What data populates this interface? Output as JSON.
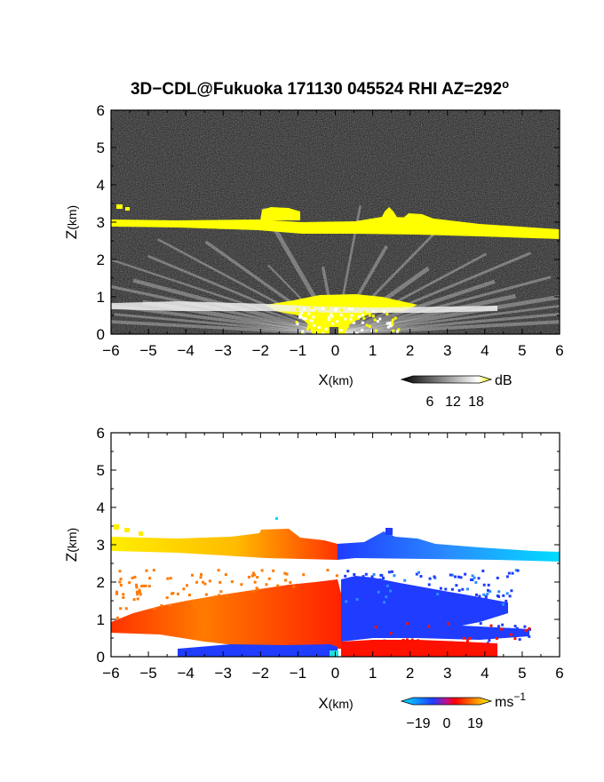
{
  "figure": {
    "title": "3D−CDL@Fukuoka 171130 045524 RHI AZ=292",
    "title_degree": "o"
  },
  "chart_data": [
    {
      "type": "heatmap",
      "variable": "reflectivity",
      "xlabel_main": "X",
      "xlabel_unit": "(km)",
      "ylabel_main": "Z",
      "ylabel_unit": "(km)",
      "xlim": [
        -6,
        6
      ],
      "ylim": [
        0,
        6
      ],
      "x_ticks": [
        -6,
        -5,
        -4,
        -3,
        -2,
        -1,
        0,
        1,
        2,
        3,
        4,
        5,
        6
      ],
      "y_ticks": [
        0,
        1,
        2,
        3,
        4,
        5,
        6
      ],
      "colorbar": {
        "unit": "dB",
        "ticks": [
          6,
          12,
          18
        ],
        "range": [
          0,
          20
        ],
        "colors": [
          "#000000",
          "#ffffff",
          "#ffff00"
        ]
      },
      "features": [
        {
          "kind": "strong-echo-layer",
          "x_range": [
            -6,
            6
          ],
          "z_top": [
            3.05,
            2.6
          ],
          "z_bottom": [
            2.85,
            2.55
          ],
          "color": "#ffff00"
        },
        {
          "kind": "cloud-bump",
          "x_range": [
            -2.0,
            -0.9
          ],
          "z_range": [
            3.0,
            3.35
          ],
          "color": "#ffff00"
        },
        {
          "kind": "cloud-bump",
          "x_range": [
            1.2,
            1.6
          ],
          "z_range": [
            2.9,
            3.3
          ],
          "color": "#ffff00"
        },
        {
          "kind": "low-level-strong",
          "x_range": [
            -1.5,
            2.0
          ],
          "z_range": [
            0.0,
            1.05
          ],
          "color": "#ffff00"
        },
        {
          "kind": "boundary-layer-scatter",
          "x_range": [
            -6,
            6
          ],
          "z_range": [
            0.0,
            1.6
          ],
          "color": "#cccccc"
        }
      ]
    },
    {
      "type": "heatmap",
      "variable": "doppler-velocity",
      "xlabel_main": "X",
      "xlabel_unit": "(km)",
      "ylabel_main": "Z",
      "ylabel_unit": "(km)",
      "xlim": [
        -6,
        6
      ],
      "ylim": [
        0,
        6
      ],
      "x_ticks": [
        -6,
        -5,
        -4,
        -3,
        -2,
        -1,
        0,
        1,
        2,
        3,
        4,
        5,
        6
      ],
      "y_ticks": [
        0,
        1,
        2,
        3,
        4,
        5,
        6
      ],
      "colorbar": {
        "unit": "ms",
        "unit_exp": "−1",
        "ticks": [
          "−19",
          "0",
          "19"
        ],
        "tick_values": [
          -19,
          0,
          19
        ],
        "range": [
          -25,
          25
        ],
        "colors": [
          "#00e5ff",
          "#1f3cff",
          "#ff0000",
          "#ffff00"
        ]
      },
      "features": [
        {
          "kind": "upper-layer-receding",
          "x_range": [
            -6,
            0
          ],
          "z_range": [
            2.65,
            3.1
          ],
          "colors": [
            "#ffee00",
            "#ff4400"
          ]
        },
        {
          "kind": "upper-layer-approaching",
          "x_range": [
            0,
            6
          ],
          "z_range": [
            2.6,
            3.0
          ],
          "colors": [
            "#1f3cff",
            "#00ddff"
          ]
        },
        {
          "kind": "lower-layer-receding",
          "x_range": [
            -6,
            0.1
          ],
          "z_range": [
            0.2,
            1.85
          ],
          "colors": [
            "#ff8c00",
            "#ff2200"
          ]
        },
        {
          "kind": "lower-layer-approaching",
          "x_range": [
            0.1,
            5
          ],
          "z_range": [
            0.35,
            2.1
          ],
          "colors": [
            "#1f3cff",
            "#3e7bff"
          ]
        },
        {
          "kind": "surface-approaching",
          "x_range": [
            -4.5,
            0
          ],
          "z_range": [
            0.0,
            0.3
          ],
          "color": "#1f3cff"
        },
        {
          "kind": "surface-receding",
          "x_range": [
            0.1,
            4
          ],
          "z_range": [
            0.0,
            0.35
          ],
          "color": "#ff1100"
        }
      ]
    }
  ]
}
